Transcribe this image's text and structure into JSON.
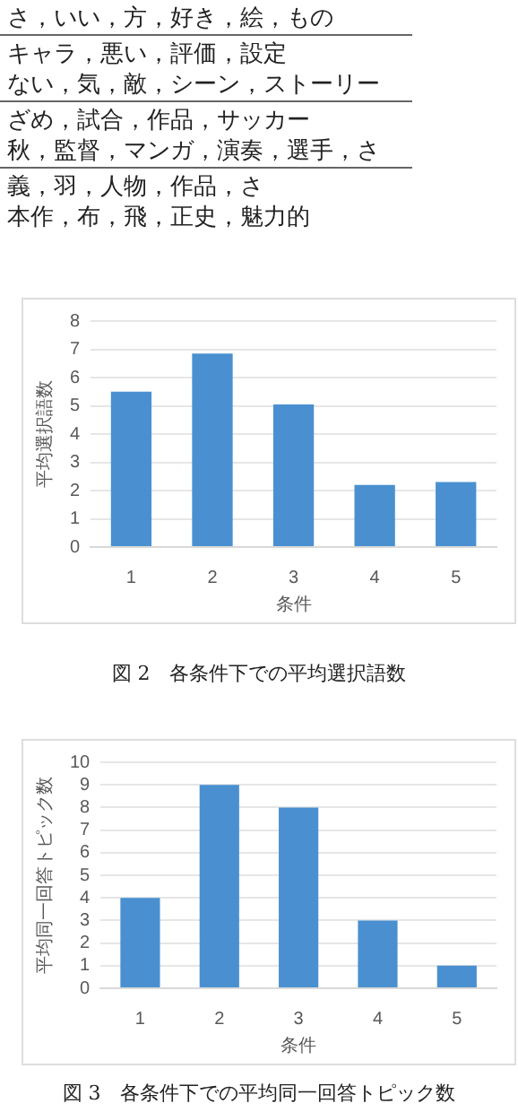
{
  "chart_data": [
    {
      "type": "bar",
      "title": "図 2　各条件下での平均選択語数",
      "xlabel": "条件",
      "ylabel": "平均選択語数",
      "annotations": [
        "さ，いい，方，好き，絵，もの",
        "キャラ，悪い，評価，設定",
        "ない，気，敵，シーン，ストーリー",
        "ざめ，試合，作品，サッカー",
        "秋，監督，マンガ，演奏，選手，さ",
        "義，羽，人物，作品，さ",
        "本作，布，飛，正史，魅力的"
      ],
      "categories": [
        "1",
        "2",
        "3",
        "4",
        "5"
      ],
      "values": [
        5.5,
        6.85,
        5.05,
        2.2,
        2.3
      ],
      "color": "#4a90d0",
      "ylim": [
        0,
        8
      ],
      "yticks": [
        0,
        1,
        2,
        3,
        4,
        5,
        6,
        7,
        8
      ],
      "grid": "y"
    },
    {
      "type": "bar",
      "title": "図 3　各条件下での平均同一回答トピック数",
      "xlabel": "条件",
      "ylabel": "平均同一回答トピック数",
      "categories": [
        "1",
        "2",
        "3",
        "4",
        "5"
      ],
      "values": [
        4,
        9,
        8,
        3,
        1
      ],
      "color": "#4a90d0",
      "ylim": [
        0,
        10
      ],
      "yticks": [
        0,
        1,
        2,
        3,
        4,
        5,
        6,
        7,
        8,
        9,
        10
      ],
      "grid": "y"
    }
  ]
}
